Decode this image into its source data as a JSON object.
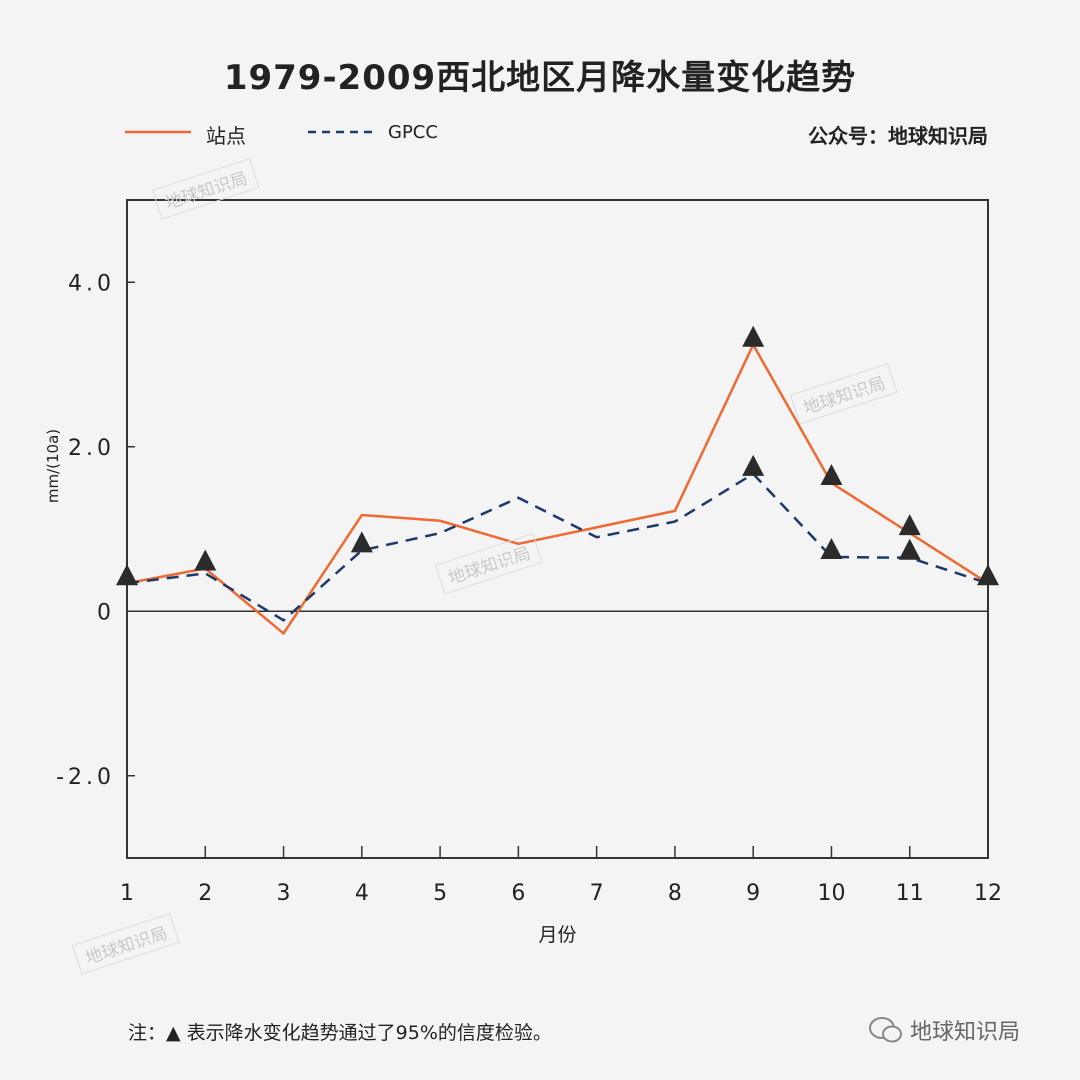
{
  "chart_data": {
    "type": "line",
    "title": "1979-2009西北地区月降水量变化趋势",
    "xlabel": "月份",
    "ylabel": "mm/(10a)",
    "x": [
      1,
      2,
      3,
      4,
      5,
      6,
      7,
      8,
      9,
      10,
      11,
      12
    ],
    "xticks": [
      "1",
      "2",
      "3",
      "4",
      "5",
      "6",
      "7",
      "8",
      "9",
      "10",
      "11",
      "12"
    ],
    "ylim": [
      -3,
      5
    ],
    "yticks": [
      {
        "value": 4,
        "label": "4.0"
      },
      {
        "value": 2,
        "label": "2.0"
      },
      {
        "value": 0,
        "label": "0"
      },
      {
        "value": -2,
        "label": "-2.0"
      }
    ],
    "grid": false,
    "legend_placement": "top-left",
    "series": [
      {
        "name": "站点",
        "color": "#ee6a32",
        "style": "solid",
        "values": [
          0.34,
          0.52,
          -0.27,
          1.17,
          1.1,
          0.82,
          1.02,
          1.22,
          3.24,
          1.56,
          0.95,
          0.34
        ],
        "significant": [
          true,
          true,
          false,
          false,
          false,
          false,
          false,
          false,
          true,
          true,
          true,
          true
        ]
      },
      {
        "name": "GPCC",
        "color": "#1b3a6b",
        "style": "dashed",
        "values": [
          0.34,
          0.46,
          -0.11,
          0.74,
          0.95,
          1.38,
          0.9,
          1.09,
          1.67,
          0.66,
          0.65,
          0.34
        ],
        "significant": [
          false,
          false,
          false,
          true,
          false,
          false,
          false,
          false,
          true,
          true,
          true,
          false
        ]
      }
    ],
    "marker_color": "#2b2b2b"
  },
  "source": "公众号：地球知识局",
  "note": "注：▲ 表示降水变化趋势通过了95%的信度检验。",
  "logo": "地球知识局",
  "watermark": "地球知识局"
}
